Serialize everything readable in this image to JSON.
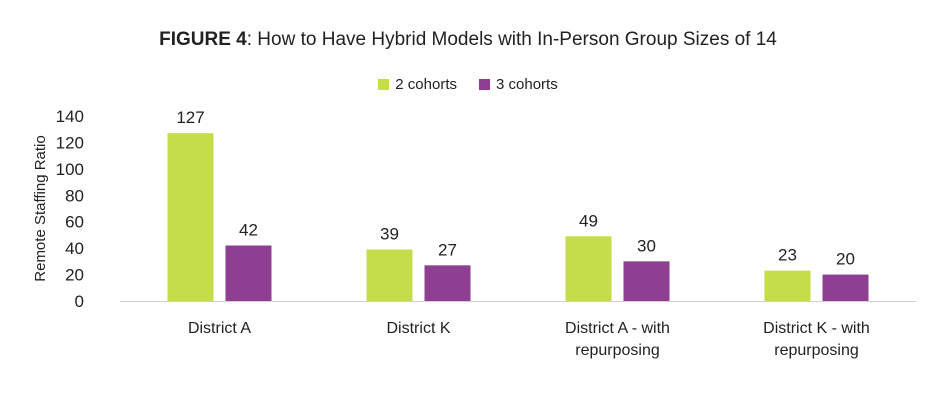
{
  "title_label": "FIGURE 4",
  "title_text": ": How to Have Hybrid Models with In-Person Group Sizes of 14",
  "chart_data": {
    "type": "bar",
    "categories": [
      [
        "District A"
      ],
      [
        "District K"
      ],
      [
        "District A - with",
        "repurposing"
      ],
      [
        "District K - with",
        "repurposing"
      ]
    ],
    "series": [
      {
        "name": "2 cohorts",
        "color": "#c5dd4b",
        "values": [
          127,
          39,
          49,
          23
        ]
      },
      {
        "name": "3 cohorts",
        "color": "#8e3f92",
        "values": [
          42,
          27,
          30,
          20
        ]
      }
    ],
    "ylabel": "Remote Staffing Ratio",
    "ylim": [
      0,
      140
    ],
    "yticks": [
      0,
      20,
      40,
      60,
      80,
      100,
      120,
      140
    ],
    "grid": false,
    "legend": "top-center"
  }
}
